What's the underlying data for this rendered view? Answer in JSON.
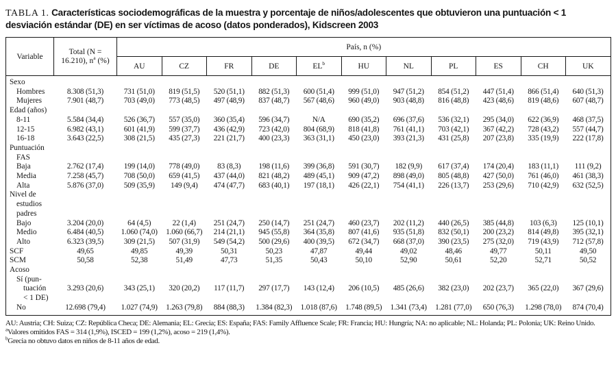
{
  "title": {
    "label": "TABLA 1.",
    "text": "Características sociodemográficas de la muestra y porcentaje de niños/adolescentes que obtuvieron una puntuación < 1 desviación estándar (DE) en ser víctimas de acoso (datos ponderados), Kidscreen 2003"
  },
  "table": {
    "header": {
      "variable": "Variable",
      "total_line1": "Total (N =",
      "total_line2a": "16.210), n",
      "total_sup": "a",
      "total_line2b": " (%)",
      "pais": "País, n (%)",
      "countries": [
        {
          "code": "AU",
          "sup": ""
        },
        {
          "code": "CZ",
          "sup": ""
        },
        {
          "code": "FR",
          "sup": ""
        },
        {
          "code": "DE",
          "sup": ""
        },
        {
          "code": "EL",
          "sup": "b"
        },
        {
          "code": "HU",
          "sup": ""
        },
        {
          "code": "NL",
          "sup": ""
        },
        {
          "code": "PL",
          "sup": ""
        },
        {
          "code": "ES",
          "sup": ""
        },
        {
          "code": "CH",
          "sup": ""
        },
        {
          "code": "UK",
          "sup": ""
        }
      ]
    },
    "rows": [
      {
        "label_lines": [
          {
            "text": "Sexo",
            "indent": 0
          }
        ],
        "total": "",
        "values": []
      },
      {
        "label_lines": [
          {
            "text": "Hombres",
            "indent": 1
          }
        ],
        "total": "8.308 (51,3)",
        "values": [
          "731 (51,0)",
          "819 (51,5)",
          "520 (51,1)",
          "882 (51,3)",
          "600 (51,4)",
          "999 (51,0)",
          "947 (51,2)",
          "854 (51,2)",
          "447 (51,4)",
          "866 (51,4)",
          "640 (51,3)"
        ]
      },
      {
        "label_lines": [
          {
            "text": "Mujeres",
            "indent": 1
          }
        ],
        "total": "7.901 (48,7)",
        "values": [
          "703 (49,0)",
          "773 (48,5)",
          "497 (48,9)",
          "837 (48,7)",
          "567 (48,6)",
          "960 (49,0)",
          "903 (48,8)",
          "816 (48,8)",
          "423 (48,6)",
          "819 (48,6)",
          "607 (48,7)"
        ]
      },
      {
        "label_lines": [
          {
            "text": "Edad (años)",
            "indent": 0
          }
        ],
        "total": "",
        "values": []
      },
      {
        "label_lines": [
          {
            "text": "8-11",
            "indent": 1
          }
        ],
        "total": "5.584 (34,4)",
        "values": [
          "526 (36,7)",
          "557 (35,0)",
          "360 (35,4)",
          "596 (34,7)",
          "N/A",
          "690 (35,2)",
          "696 (37,6)",
          "536 (32,1)",
          "295 (34,0)",
          "622 (36,9)",
          "468 (37,5)"
        ]
      },
      {
        "label_lines": [
          {
            "text": "12-15",
            "indent": 1
          }
        ],
        "total": "6.982 (43,1)",
        "values": [
          "601 (41,9)",
          "599 (37,7)",
          "436 (42,9)",
          "723 (42,0)",
          "804 (68,9)",
          "818 (41,8)",
          "761 (41,1)",
          "703 (42,1)",
          "367 (42,2)",
          "728 (43,2)",
          "557 (44,7)"
        ]
      },
      {
        "label_lines": [
          {
            "text": "16-18",
            "indent": 1
          }
        ],
        "total": "3.643 (22,5)",
        "values": [
          "308 (21,5)",
          "435 (27,3)",
          "221 (21,7)",
          "400 (23,3)",
          "363 (31,1)",
          "450 (23,0)",
          "393 (21,3)",
          "431 (25,8)",
          "207 (23,8)",
          "335 (19,9)",
          "222 (17,8)"
        ]
      },
      {
        "label_lines": [
          {
            "text": "Puntuación",
            "indent": 0
          },
          {
            "text": "FAS",
            "indent": 1
          }
        ],
        "total": "",
        "values": []
      },
      {
        "label_lines": [
          {
            "text": "Baja",
            "indent": 1
          }
        ],
        "total": "2.762 (17,4)",
        "values": [
          "199 (14,0)",
          "778 (49,0)",
          "83 (8,3)",
          "198 (11,6)",
          "399 (36,8)",
          "591 (30,7)",
          "182 (9,9)",
          "617 (37,4)",
          "174 (20,4)",
          "183 (11,1)",
          "111 (9,2)"
        ]
      },
      {
        "label_lines": [
          {
            "text": "Media",
            "indent": 1
          }
        ],
        "total": "7.258 (45,7)",
        "values": [
          "708 (50,0)",
          "659 (41,5)",
          "437 (44,0)",
          "821 (48,2)",
          "489 (45,1)",
          "909 (47,2)",
          "898 (49,0)",
          "805 (48,8)",
          "427 (50,0)",
          "761 (46,0)",
          "461 (38,3)"
        ]
      },
      {
        "label_lines": [
          {
            "text": "Alta",
            "indent": 1
          }
        ],
        "total": "5.876 (37,0)",
        "values": [
          "509 (35,9)",
          "149 (9,4)",
          "474 (47,7)",
          "683 (40,1)",
          "197 (18,1)",
          "426 (22,1)",
          "754 (41,1)",
          "226 (13,7)",
          "253 (29,6)",
          "710 (42,9)",
          "632 (52,5)"
        ]
      },
      {
        "label_lines": [
          {
            "text": "Nivel de",
            "indent": 0
          },
          {
            "text": "estudios",
            "indent": 1
          },
          {
            "text": "padres",
            "indent": 1
          }
        ],
        "total": "",
        "values": []
      },
      {
        "label_lines": [
          {
            "text": "Bajo",
            "indent": 1
          }
        ],
        "total": "3.204 (20,0)",
        "values": [
          "64 (4,5)",
          "22 (1,4)",
          "251 (24,7)",
          "250 (14,7)",
          "251 (24,7)",
          "460 (23,7)",
          "202 (11,2)",
          "440 (26,5)",
          "385 (44,8)",
          "103 (6,3)",
          "125 (10,1)"
        ]
      },
      {
        "label_lines": [
          {
            "text": "Medio",
            "indent": 1
          }
        ],
        "total": "6.484 (40,5)",
        "values": [
          "1.060 (74,0)",
          "1.060 (66,7)",
          "214 (21,1)",
          "945 (55,8)",
          "364 (35,8)",
          "807 (41,6)",
          "935 (51,8)",
          "832 (50,1)",
          "200 (23,2)",
          "814 (49,8)",
          "395 (32,1)"
        ]
      },
      {
        "label_lines": [
          {
            "text": "Alto",
            "indent": 1
          }
        ],
        "total": "6.323 (39,5)",
        "values": [
          "309 (21,5)",
          "507 (31,9)",
          "549 (54,2)",
          "500 (29,6)",
          "400 (39,5)",
          "672 (34,7)",
          "668 (37,0)",
          "390 (23,5)",
          "275 (32,0)",
          "719 (43,9)",
          "712 (57,8)"
        ]
      },
      {
        "label_lines": [
          {
            "text": "SCF",
            "indent": 0
          }
        ],
        "total": "49,65",
        "values": [
          "49,85",
          "49,39",
          "50,31",
          "50,23",
          "47,87",
          "49,44",
          "49,02",
          "48,46",
          "49,77",
          "50,11",
          "49,50"
        ]
      },
      {
        "label_lines": [
          {
            "text": "SCM",
            "indent": 0
          }
        ],
        "total": "50,58",
        "values": [
          "52,38",
          "51,49",
          "47,73",
          "51,35",
          "50,43",
          "50,10",
          "52,90",
          "50,61",
          "52,20",
          "52,71",
          "50,52"
        ]
      },
      {
        "label_lines": [
          {
            "text": "Acoso",
            "indent": 0
          }
        ],
        "total": "",
        "values": []
      },
      {
        "label_lines": [
          {
            "text": "Sí (pun-",
            "indent": 1
          },
          {
            "text": "tuación",
            "indent": 2
          },
          {
            "text": "< 1 DE)",
            "indent": 2
          }
        ],
        "total": "3.293 (20,6)",
        "values": [
          "343 (25,1)",
          "320 (20,2)",
          "117 (11,7)",
          "297 (17,7)",
          "143 (12,4)",
          "206 (10,5)",
          "485 (26,6)",
          "382 (23,0)",
          "202 (23,7)",
          "365 (22,0)",
          "367 (29,6)"
        ]
      },
      {
        "label_lines": [
          {
            "text": "No",
            "indent": 1
          }
        ],
        "total": "12.698 (79,4)",
        "values": [
          "1.027 (74,9)",
          "1.263 (79,8)",
          "884 (88,3)",
          "1.384 (82,3)",
          "1.018 (87,6)",
          "1.748 (89,5)",
          "1.341 (73,4)",
          "1.281 (77,0)",
          "650 (76,3)",
          "1.298 (78,0)",
          "874 (70,4)"
        ]
      }
    ]
  },
  "footnotes": [
    {
      "sup": "",
      "text": "AU: Austria; CH: Suiza; CZ: República Checa; DE: Alemania; EL: Grecia; ES: España; FAS: Family Affluence Scale; FR: Francia; HU: Hungría; NA: no aplicable; NL: Holanda; PL: Polonia; UK: Reino Unido."
    },
    {
      "sup": "a",
      "text": "Valores omitidos FAS = 314 (1,9%), ISCED = 199 (1,2%), acoso = 219 (1,4%)."
    },
    {
      "sup": "b",
      "text": "Grecia no obtuvo datos en niños de 8-11 años de edad."
    }
  ]
}
